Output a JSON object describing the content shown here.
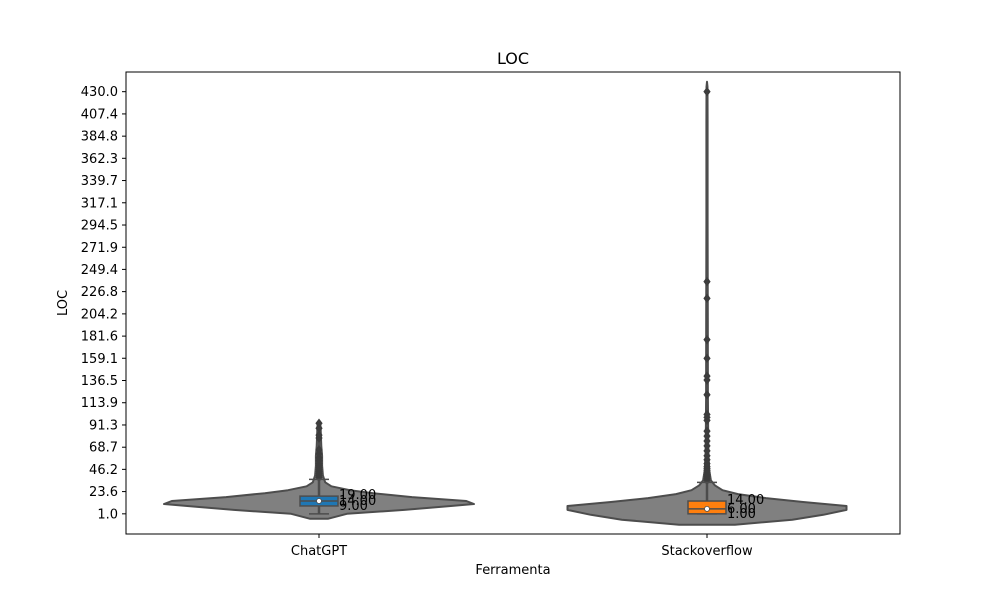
{
  "chart_data": {
    "type": "violin",
    "title": "LOC",
    "xlabel": "Ferramenta",
    "ylabel": "LOC",
    "categories": [
      "ChatGPT",
      "Stackoverflow"
    ],
    "ylim": [
      -19.5,
      450
    ],
    "y_ticks": [
      "1.0",
      "23.6",
      "46.2",
      "68.7",
      "91.3",
      "113.9",
      "136.5",
      "159.1",
      "181.6",
      "204.2",
      "226.8",
      "249.4",
      "271.9",
      "294.5",
      "317.1",
      "339.7",
      "362.3",
      "384.8",
      "407.4",
      "430.0"
    ],
    "colors": {
      "violin_fill": "#808080",
      "violin_edge": "#4d4d4d",
      "box_chatgpt": "#1f77b4",
      "box_stackoverflow": "#ff7f0e"
    },
    "violins": [
      {
        "name": "ChatGPT",
        "min": 1.0,
        "q1": 9.0,
        "median": 14.0,
        "q3": 19.0,
        "whisker_low": 1.0,
        "whisker_high": 36.0,
        "max": 93.0,
        "outliers": [
          38,
          40,
          42,
          44,
          46,
          48,
          50,
          52,
          55,
          58,
          62,
          66,
          78,
          81,
          88,
          93
        ],
        "density": [
          [
            -4,
            0.06
          ],
          [
            1,
            0.18
          ],
          [
            5,
            0.55
          ],
          [
            9,
            0.85
          ],
          [
            11,
            1.0
          ],
          [
            14,
            0.95
          ],
          [
            18,
            0.6
          ],
          [
            22,
            0.35
          ],
          [
            25,
            0.2
          ],
          [
            29,
            0.08
          ],
          [
            33,
            0.04
          ],
          [
            40,
            0.025
          ],
          [
            50,
            0.02
          ],
          [
            60,
            0.02
          ],
          [
            70,
            0.015
          ],
          [
            80,
            0.012
          ],
          [
            90,
            0.01
          ],
          [
            95,
            0.0
          ]
        ],
        "labels": [
          "19.00",
          "14.00",
          "9.00"
        ]
      },
      {
        "name": "Stackoverflow",
        "min": 1.0,
        "q1": 1.0,
        "median": 6.0,
        "q3": 14.0,
        "whisker_low": 1.0,
        "whisker_high": 33.0,
        "max": 430.0,
        "outliers": [
          35,
          37,
          39,
          41,
          43,
          45,
          47,
          49,
          52,
          56,
          60,
          65,
          70,
          75,
          80,
          85,
          96,
          99,
          102,
          122,
          137,
          141,
          159,
          178,
          220,
          237,
          430
        ],
        "density": [
          [
            -10,
            0.18
          ],
          [
            -5,
            0.55
          ],
          [
            0,
            0.75
          ],
          [
            5,
            0.9
          ],
          [
            9,
            0.9
          ],
          [
            13,
            0.62
          ],
          [
            17,
            0.38
          ],
          [
            21,
            0.2
          ],
          [
            25,
            0.1
          ],
          [
            30,
            0.05
          ],
          [
            35,
            0.025
          ],
          [
            45,
            0.015
          ],
          [
            60,
            0.01
          ],
          [
            80,
            0.008
          ],
          [
            120,
            0.006
          ],
          [
            200,
            0.005
          ],
          [
            300,
            0.004
          ],
          [
            400,
            0.004
          ],
          [
            435,
            0.003
          ],
          [
            440,
            0.0
          ]
        ],
        "labels": [
          "14.00",
          "6.00",
          "1.00"
        ]
      }
    ]
  }
}
